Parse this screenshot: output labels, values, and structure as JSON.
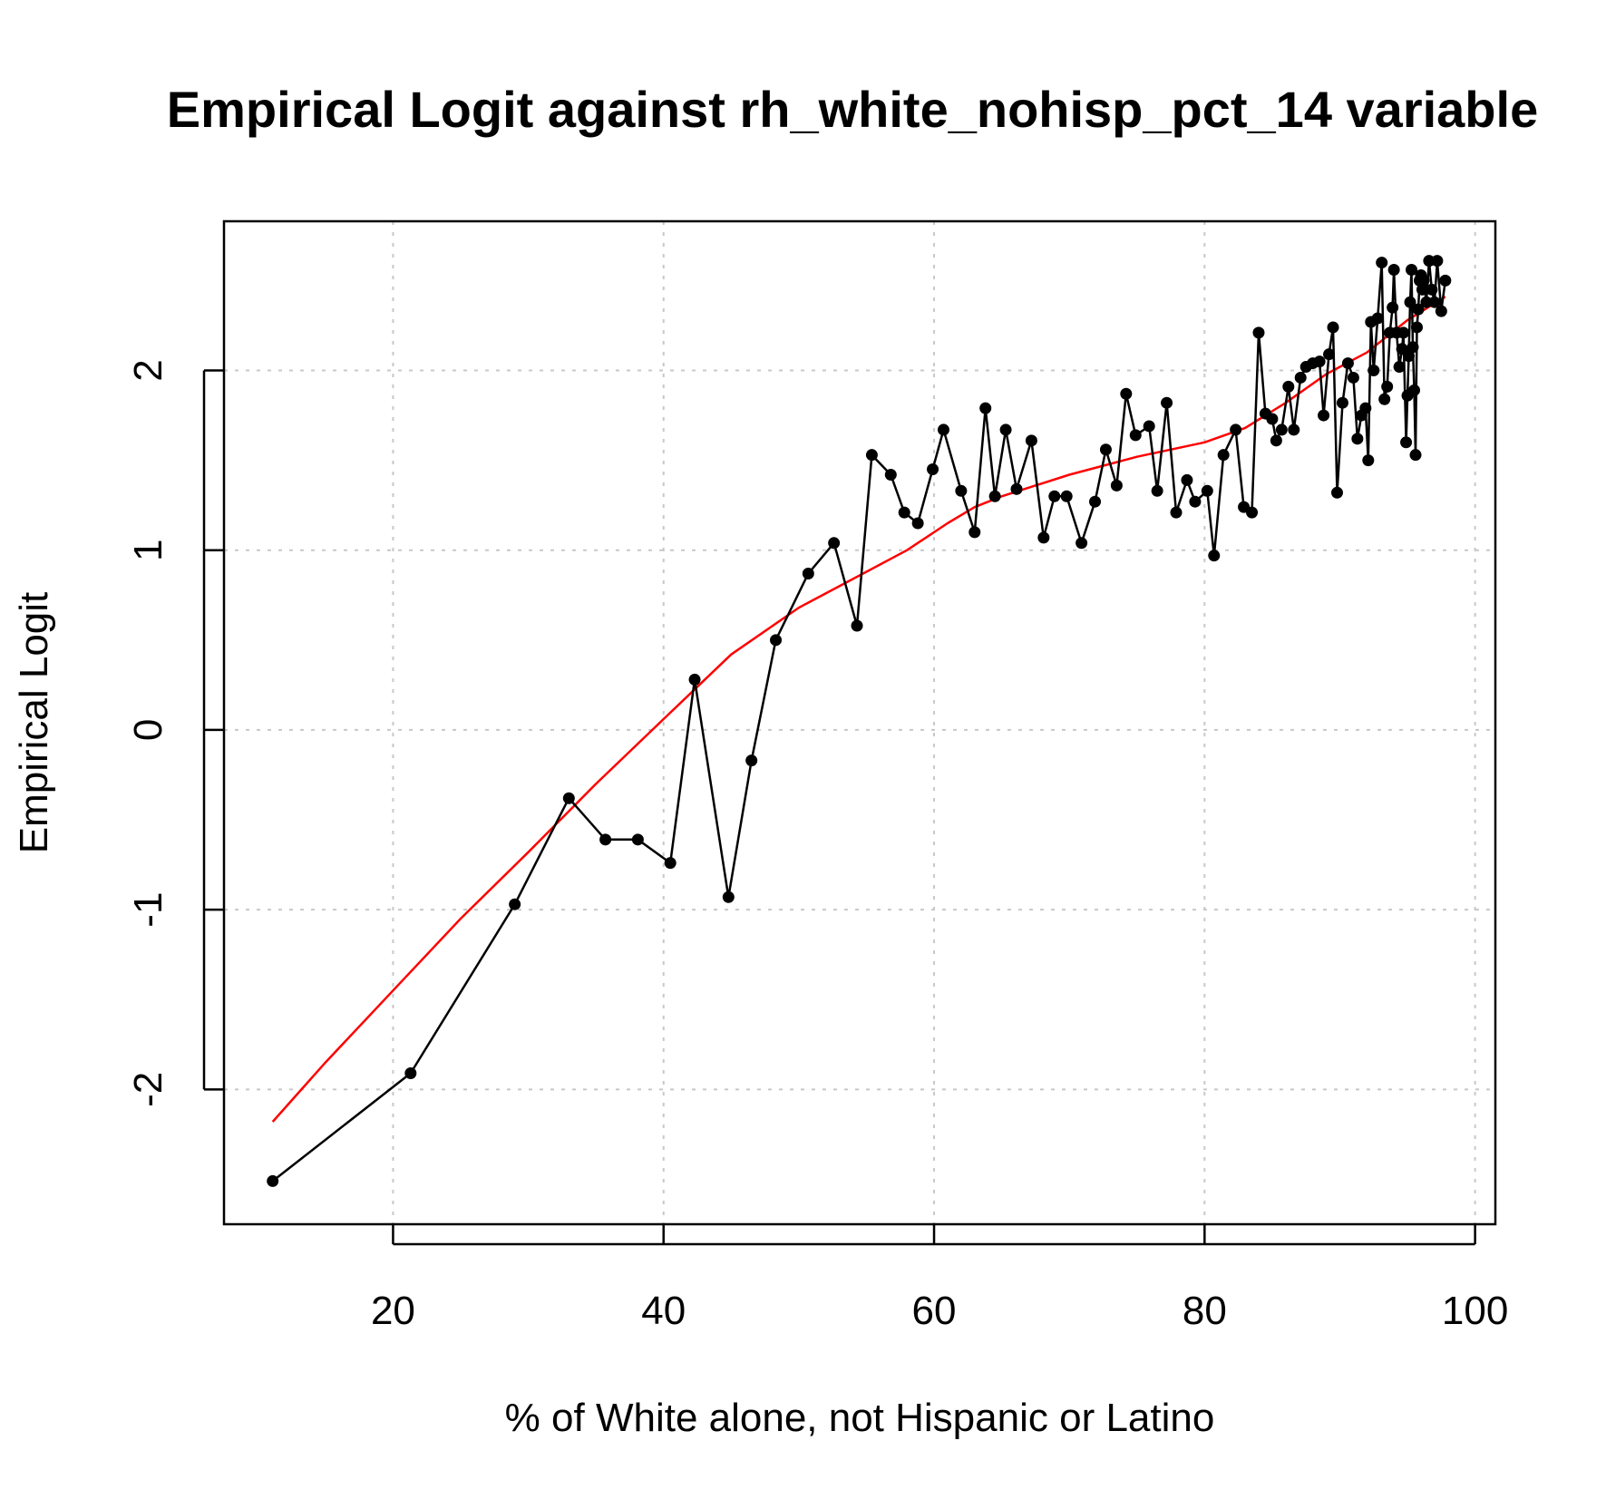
{
  "chart_data": {
    "type": "line",
    "title": "Empirical Logit against rh_white_nohisp_pct_14 variable",
    "xlabel": "% of White alone, not Hispanic or Latino",
    "ylabel": "Empirical Logit",
    "xlim": [
      7.5,
      101.5
    ],
    "ylim": [
      -2.75,
      2.83
    ],
    "x_ticks": [
      20,
      40,
      60,
      80,
      100
    ],
    "y_ticks": [
      -2,
      -1,
      0,
      1,
      2
    ],
    "grid": true,
    "colors": {
      "observed": "#000000",
      "smooth": "#ff0000",
      "grid": "#c8c8c8"
    },
    "series": [
      {
        "marker": "dot",
        "x": [
          11.1,
          21.3,
          29.0,
          33.0,
          35.7,
          38.1,
          40.5,
          42.3,
          44.8,
          46.5,
          48.3,
          50.7,
          52.6,
          54.3,
          55.4,
          56.8,
          57.8,
          58.8,
          59.9,
          60.7,
          62.0,
          63.0,
          63.8,
          64.5,
          65.3,
          66.1,
          67.2,
          68.1,
          68.9,
          69.8,
          70.9,
          71.9,
          72.7,
          73.5,
          74.2,
          74.9,
          75.9,
          76.5,
          77.2,
          77.9,
          78.7,
          79.3,
          80.2,
          80.7,
          81.4,
          82.3,
          82.9,
          83.5,
          84.0,
          84.5,
          85.0,
          85.3,
          85.7,
          86.2,
          86.6,
          87.1,
          87.5,
          88.0,
          88.5,
          88.8,
          89.2,
          89.5,
          89.8,
          90.2,
          90.6,
          91.0,
          91.3,
          91.6,
          91.9,
          92.1,
          92.3,
          92.5,
          92.8,
          93.1,
          93.3,
          93.5,
          93.7,
          93.9,
          94.0,
          94.2,
          94.4,
          94.6,
          94.7,
          94.9,
          95.0,
          95.1,
          95.2,
          95.3,
          95.4,
          95.5,
          95.6,
          95.7,
          95.8,
          95.9,
          96.0,
          96.1,
          96.2,
          96.4,
          96.6,
          96.8,
          97.0,
          97.2,
          97.5,
          97.8
        ],
        "y": [
          -2.51,
          -1.91,
          -0.97,
          -0.38,
          -0.61,
          -0.61,
          -0.74,
          0.28,
          -0.93,
          -0.17,
          0.5,
          0.87,
          1.04,
          0.58,
          1.53,
          1.42,
          1.21,
          1.15,
          1.45,
          1.67,
          1.33,
          1.1,
          1.79,
          1.3,
          1.67,
          1.34,
          1.61,
          1.07,
          1.3,
          1.3,
          1.04,
          1.27,
          1.56,
          1.36,
          1.87,
          1.64,
          1.69,
          1.33,
          1.82,
          1.21,
          1.39,
          1.27,
          1.33,
          0.97,
          1.53,
          1.67,
          1.24,
          1.21,
          2.21,
          1.76,
          1.73,
          1.61,
          1.67,
          1.91,
          1.67,
          1.96,
          2.02,
          2.04,
          2.05,
          1.75,
          2.09,
          2.24,
          1.32,
          1.82,
          2.04,
          1.96,
          1.62,
          1.75,
          1.79,
          1.5,
          2.27,
          2.0,
          2.29,
          2.6,
          1.84,
          1.91,
          2.21,
          2.35,
          2.56,
          2.21,
          2.02,
          2.12,
          2.21,
          1.6,
          1.86,
          2.08,
          2.38,
          2.56,
          2.13,
          1.89,
          1.53,
          2.24,
          2.34,
          2.5,
          2.53,
          2.45,
          2.5,
          2.38,
          2.61,
          2.45,
          2.38,
          2.61,
          2.33,
          2.5
        ]
      },
      {
        "marker": "none",
        "x": [
          11.1,
          15,
          20,
          25,
          30,
          35,
          40,
          45,
          50,
          55,
          58,
          61,
          63,
          65,
          70,
          75,
          80,
          83,
          86,
          89,
          92,
          95,
          97.8
        ],
        "y": [
          -2.18,
          -1.85,
          -1.45,
          -1.05,
          -0.68,
          -0.3,
          0.06,
          0.42,
          0.68,
          0.88,
          1.0,
          1.15,
          1.24,
          1.3,
          1.42,
          1.52,
          1.6,
          1.68,
          1.82,
          1.98,
          2.1,
          2.28,
          2.41
        ]
      }
    ]
  }
}
